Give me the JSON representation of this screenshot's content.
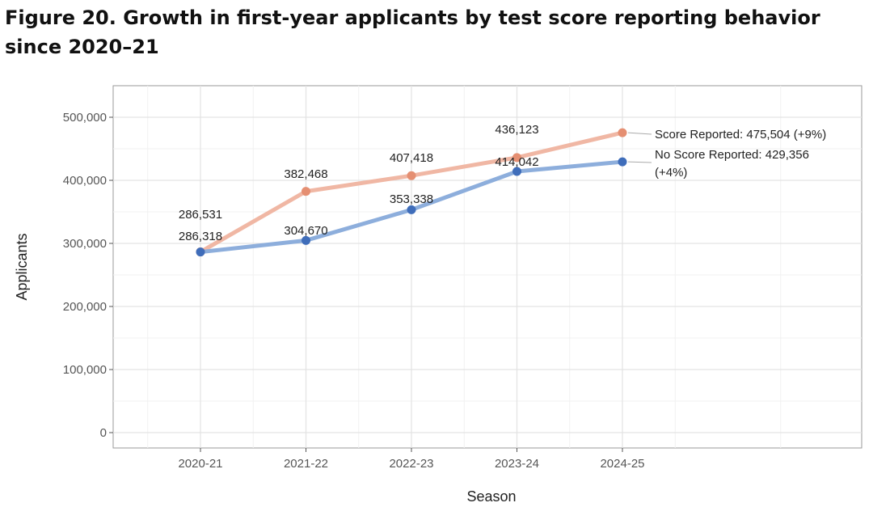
{
  "title": "Figure 20. Growth in first-year applicants by test score reporting behavior since 2020–21",
  "chart_data": {
    "type": "line",
    "title": "Figure 20. Growth in first-year applicants by test score reporting behavior since 2020–21",
    "xlabel": "Season",
    "ylabel": "Applicants",
    "categories": [
      "2020-21",
      "2021-22",
      "2022-23",
      "2023-24",
      "2024-25"
    ],
    "ylim": [
      0,
      525000
    ],
    "yticks": [
      0,
      100000,
      200000,
      300000,
      400000,
      500000
    ],
    "ytick_labels": [
      "0",
      "100,000",
      "200,000",
      "300,000",
      "400,000",
      "500,000"
    ],
    "grid": true,
    "series": [
      {
        "name": "Score Reported",
        "color": "#F0B7A4",
        "marker_color": "#E58F72",
        "values": [
          286531,
          382468,
          407418,
          436123,
          475504
        ],
        "labels": [
          "286,531",
          "382,468",
          "407,418",
          "436,123",
          null
        ],
        "end_label_lines": [
          "Score Reported: 475,504 (+9%)"
        ]
      },
      {
        "name": "No Score Reported",
        "color": "#8DAEDC",
        "marker_color": "#3F6DBA",
        "values": [
          286318,
          304670,
          353338,
          414042,
          429356
        ],
        "labels": [
          "286,318",
          "304,670",
          "353,338",
          "414,042",
          null
        ],
        "end_label_lines": [
          "No Score Reported: 429,356",
          "(+4%)"
        ]
      }
    ]
  }
}
